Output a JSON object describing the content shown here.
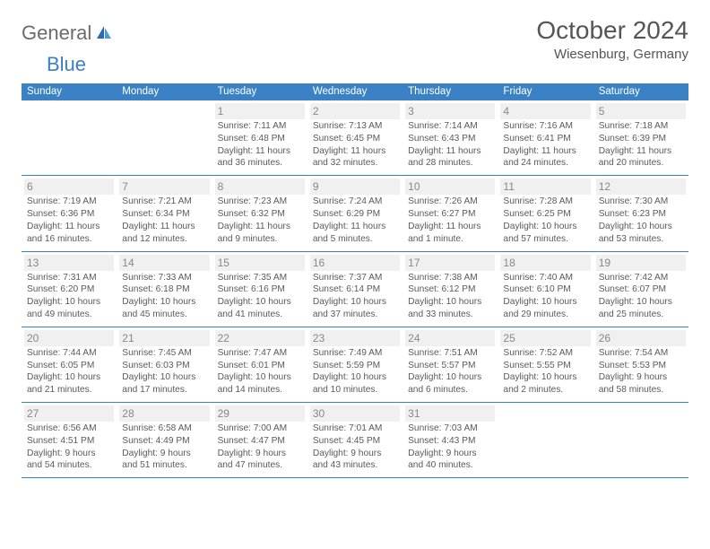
{
  "logo": {
    "part1": "General",
    "part2": "Blue"
  },
  "title": "October 2024",
  "location": "Wiesenburg, Germany",
  "weekdays": [
    "Sunday",
    "Monday",
    "Tuesday",
    "Wednesday",
    "Thursday",
    "Friday",
    "Saturday"
  ],
  "colors": {
    "header_bg": "#3a81c5",
    "text": "#555555",
    "daybar_bg": "#f0f0f0",
    "border": "#3a81c5"
  },
  "weeks": [
    [
      null,
      null,
      {
        "day": "1",
        "sunrise": "Sunrise: 7:11 AM",
        "sunset": "Sunset: 6:48 PM",
        "daylight1": "Daylight: 11 hours",
        "daylight2": "and 36 minutes."
      },
      {
        "day": "2",
        "sunrise": "Sunrise: 7:13 AM",
        "sunset": "Sunset: 6:45 PM",
        "daylight1": "Daylight: 11 hours",
        "daylight2": "and 32 minutes."
      },
      {
        "day": "3",
        "sunrise": "Sunrise: 7:14 AM",
        "sunset": "Sunset: 6:43 PM",
        "daylight1": "Daylight: 11 hours",
        "daylight2": "and 28 minutes."
      },
      {
        "day": "4",
        "sunrise": "Sunrise: 7:16 AM",
        "sunset": "Sunset: 6:41 PM",
        "daylight1": "Daylight: 11 hours",
        "daylight2": "and 24 minutes."
      },
      {
        "day": "5",
        "sunrise": "Sunrise: 7:18 AM",
        "sunset": "Sunset: 6:39 PM",
        "daylight1": "Daylight: 11 hours",
        "daylight2": "and 20 minutes."
      }
    ],
    [
      {
        "day": "6",
        "sunrise": "Sunrise: 7:19 AM",
        "sunset": "Sunset: 6:36 PM",
        "daylight1": "Daylight: 11 hours",
        "daylight2": "and 16 minutes."
      },
      {
        "day": "7",
        "sunrise": "Sunrise: 7:21 AM",
        "sunset": "Sunset: 6:34 PM",
        "daylight1": "Daylight: 11 hours",
        "daylight2": "and 12 minutes."
      },
      {
        "day": "8",
        "sunrise": "Sunrise: 7:23 AM",
        "sunset": "Sunset: 6:32 PM",
        "daylight1": "Daylight: 11 hours",
        "daylight2": "and 9 minutes."
      },
      {
        "day": "9",
        "sunrise": "Sunrise: 7:24 AM",
        "sunset": "Sunset: 6:29 PM",
        "daylight1": "Daylight: 11 hours",
        "daylight2": "and 5 minutes."
      },
      {
        "day": "10",
        "sunrise": "Sunrise: 7:26 AM",
        "sunset": "Sunset: 6:27 PM",
        "daylight1": "Daylight: 11 hours",
        "daylight2": "and 1 minute."
      },
      {
        "day": "11",
        "sunrise": "Sunrise: 7:28 AM",
        "sunset": "Sunset: 6:25 PM",
        "daylight1": "Daylight: 10 hours",
        "daylight2": "and 57 minutes."
      },
      {
        "day": "12",
        "sunrise": "Sunrise: 7:30 AM",
        "sunset": "Sunset: 6:23 PM",
        "daylight1": "Daylight: 10 hours",
        "daylight2": "and 53 minutes."
      }
    ],
    [
      {
        "day": "13",
        "sunrise": "Sunrise: 7:31 AM",
        "sunset": "Sunset: 6:20 PM",
        "daylight1": "Daylight: 10 hours",
        "daylight2": "and 49 minutes."
      },
      {
        "day": "14",
        "sunrise": "Sunrise: 7:33 AM",
        "sunset": "Sunset: 6:18 PM",
        "daylight1": "Daylight: 10 hours",
        "daylight2": "and 45 minutes."
      },
      {
        "day": "15",
        "sunrise": "Sunrise: 7:35 AM",
        "sunset": "Sunset: 6:16 PM",
        "daylight1": "Daylight: 10 hours",
        "daylight2": "and 41 minutes."
      },
      {
        "day": "16",
        "sunrise": "Sunrise: 7:37 AM",
        "sunset": "Sunset: 6:14 PM",
        "daylight1": "Daylight: 10 hours",
        "daylight2": "and 37 minutes."
      },
      {
        "day": "17",
        "sunrise": "Sunrise: 7:38 AM",
        "sunset": "Sunset: 6:12 PM",
        "daylight1": "Daylight: 10 hours",
        "daylight2": "and 33 minutes."
      },
      {
        "day": "18",
        "sunrise": "Sunrise: 7:40 AM",
        "sunset": "Sunset: 6:10 PM",
        "daylight1": "Daylight: 10 hours",
        "daylight2": "and 29 minutes."
      },
      {
        "day": "19",
        "sunrise": "Sunrise: 7:42 AM",
        "sunset": "Sunset: 6:07 PM",
        "daylight1": "Daylight: 10 hours",
        "daylight2": "and 25 minutes."
      }
    ],
    [
      {
        "day": "20",
        "sunrise": "Sunrise: 7:44 AM",
        "sunset": "Sunset: 6:05 PM",
        "daylight1": "Daylight: 10 hours",
        "daylight2": "and 21 minutes."
      },
      {
        "day": "21",
        "sunrise": "Sunrise: 7:45 AM",
        "sunset": "Sunset: 6:03 PM",
        "daylight1": "Daylight: 10 hours",
        "daylight2": "and 17 minutes."
      },
      {
        "day": "22",
        "sunrise": "Sunrise: 7:47 AM",
        "sunset": "Sunset: 6:01 PM",
        "daylight1": "Daylight: 10 hours",
        "daylight2": "and 14 minutes."
      },
      {
        "day": "23",
        "sunrise": "Sunrise: 7:49 AM",
        "sunset": "Sunset: 5:59 PM",
        "daylight1": "Daylight: 10 hours",
        "daylight2": "and 10 minutes."
      },
      {
        "day": "24",
        "sunrise": "Sunrise: 7:51 AM",
        "sunset": "Sunset: 5:57 PM",
        "daylight1": "Daylight: 10 hours",
        "daylight2": "and 6 minutes."
      },
      {
        "day": "25",
        "sunrise": "Sunrise: 7:52 AM",
        "sunset": "Sunset: 5:55 PM",
        "daylight1": "Daylight: 10 hours",
        "daylight2": "and 2 minutes."
      },
      {
        "day": "26",
        "sunrise": "Sunrise: 7:54 AM",
        "sunset": "Sunset: 5:53 PM",
        "daylight1": "Daylight: 9 hours",
        "daylight2": "and 58 minutes."
      }
    ],
    [
      {
        "day": "27",
        "sunrise": "Sunrise: 6:56 AM",
        "sunset": "Sunset: 4:51 PM",
        "daylight1": "Daylight: 9 hours",
        "daylight2": "and 54 minutes."
      },
      {
        "day": "28",
        "sunrise": "Sunrise: 6:58 AM",
        "sunset": "Sunset: 4:49 PM",
        "daylight1": "Daylight: 9 hours",
        "daylight2": "and 51 minutes."
      },
      {
        "day": "29",
        "sunrise": "Sunrise: 7:00 AM",
        "sunset": "Sunset: 4:47 PM",
        "daylight1": "Daylight: 9 hours",
        "daylight2": "and 47 minutes."
      },
      {
        "day": "30",
        "sunrise": "Sunrise: 7:01 AM",
        "sunset": "Sunset: 4:45 PM",
        "daylight1": "Daylight: 9 hours",
        "daylight2": "and 43 minutes."
      },
      {
        "day": "31",
        "sunrise": "Sunrise: 7:03 AM",
        "sunset": "Sunset: 4:43 PM",
        "daylight1": "Daylight: 9 hours",
        "daylight2": "and 40 minutes."
      },
      null,
      null
    ]
  ]
}
